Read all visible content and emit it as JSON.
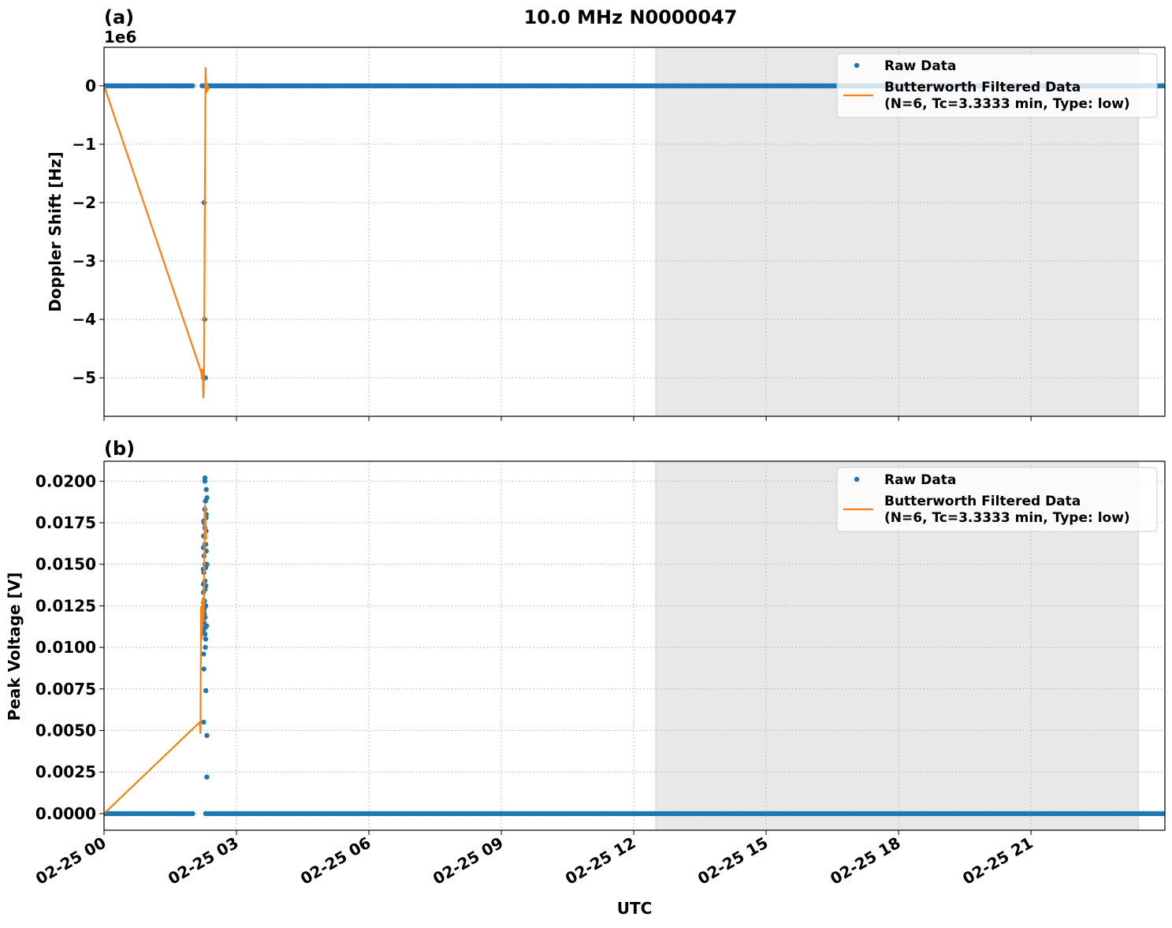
{
  "chart_data": [
    {
      "type": "scatter",
      "panel_label": "(a)",
      "title": "10.0 MHz N0000047",
      "ylabel": "Doppler Shift [Hz]",
      "y_offset_text": "1e6",
      "ylim": [
        -5660000,
        660000
      ],
      "xlim": [
        "02-25 00:00",
        "02-25 24:02"
      ],
      "yticks": [
        0,
        -1000000,
        -2000000,
        -3000000,
        -4000000,
        -5000000
      ],
      "ytick_labels": [
        "0",
        "−1",
        "−2",
        "−3",
        "−4",
        "−5"
      ],
      "grid": true,
      "legend_placement": "top-right",
      "shaded_interval": [
        "02-25 12:30",
        "02-25 23:26"
      ],
      "series": [
        {
          "name": "Raw Data",
          "kind": "markers",
          "color": "#1f77b4",
          "constant_runs": [
            {
              "y": 0,
              "from": "02-25 00:00",
              "to": "02-25 02:03"
            },
            {
              "y": 0,
              "from": "02-25 02:18",
              "to": "02-25 24:02"
            }
          ],
          "points": [
            [
              "02-25 02:14",
              0
            ],
            [
              "02-25 02:16",
              0
            ],
            [
              "02-25 02:17",
              -2000000
            ],
            [
              "02-25 02:17",
              -4000000
            ],
            [
              "02-25 02:17",
              -5000000
            ],
            [
              "02-25 02:15",
              -5000000
            ]
          ]
        },
        {
          "name": "Butterworth Filtered Data\n(N=6, Tc=3.3333 min, Type: low)",
          "kind": "line",
          "color": "#ff7f0e",
          "points": [
            [
              "02-25 00:00",
              0
            ],
            [
              "02-25 02:10",
              -4820000
            ],
            [
              "02-25 02:12",
              -4900000
            ],
            [
              "02-25 02:13",
              -5000000
            ],
            [
              "02-25 02:14",
              -4850000
            ],
            [
              "02-25 02:15",
              -5350000
            ],
            [
              "02-25 02:16",
              -4900000
            ],
            [
              "02-25 02:17",
              -2000000
            ],
            [
              "02-25 02:18",
              320000
            ],
            [
              "02-25 02:19",
              -120000
            ],
            [
              "02-25 02:20",
              30000
            ],
            [
              "02-25 02:21",
              -80000
            ],
            [
              "02-25 02:22",
              0
            ]
          ]
        }
      ]
    },
    {
      "type": "scatter",
      "panel_label": "(b)",
      "xlabel": "UTC",
      "ylabel": "Peak Voltage [V]",
      "ylim": [
        -0.001,
        0.0212
      ],
      "xlim": [
        "02-25 00:00",
        "02-25 24:02"
      ],
      "yticks": [
        0,
        0.0025,
        0.005,
        0.0075,
        0.01,
        0.0125,
        0.015,
        0.0175,
        0.02
      ],
      "ytick_labels": [
        "0.0000",
        "0.0025",
        "0.0050",
        "0.0075",
        "0.0100",
        "0.0125",
        "0.0150",
        "0.0175",
        "0.0200"
      ],
      "xticks": [
        "02-25 00:00",
        "02-25 03:00",
        "02-25 06:00",
        "02-25 09:00",
        "02-25 12:00",
        "02-25 15:00",
        "02-25 18:00",
        "02-25 21:00"
      ],
      "xtick_labels": [
        "02-25 00",
        "02-25 03",
        "02-25 06",
        "02-25 09",
        "02-25 12",
        "02-25 15",
        "02-25 18",
        "02-25 21"
      ],
      "grid": true,
      "legend_placement": "top-right",
      "shaded_interval": [
        "02-25 12:30",
        "02-25 23:26"
      ],
      "series": [
        {
          "name": "Raw Data",
          "kind": "markers",
          "color": "#1f77b4",
          "constant_runs": [
            {
              "y": 0,
              "from": "02-25 00:00",
              "to": "02-25 02:03"
            },
            {
              "y": 0,
              "from": "02-25 02:18",
              "to": "02-25 24:02"
            }
          ],
          "points": [
            [
              "02-25 02:15",
              0.0055
            ],
            [
              "02-25 02:15",
              0.0122
            ],
            [
              "02-25 02:15",
              0.0127
            ],
            [
              "02-25 02:15",
              0.0138
            ],
            [
              "02-25 02:15",
              0.0147
            ],
            [
              "02-25 02:15",
              0.016
            ],
            [
              "02-25 02:15",
              0.0175
            ],
            [
              "02-25 02:15",
              0.0115
            ],
            [
              "02-25 02:16",
              0.0096
            ],
            [
              "02-25 02:16",
              0.011
            ],
            [
              "02-25 02:16",
              0.012
            ],
            [
              "02-25 02:16",
              0.0133
            ],
            [
              "02-25 02:16",
              0.0145
            ],
            [
              "02-25 02:16",
              0.0155
            ],
            [
              "02-25 02:16",
              0.0167
            ],
            [
              "02-25 02:16",
              0.0176
            ],
            [
              "02-25 02:16",
              0.0087
            ],
            [
              "02-25 02:17",
              0.01
            ],
            [
              "02-25 02:17",
              0.0108
            ],
            [
              "02-25 02:17",
              0.0118
            ],
            [
              "02-25 02:17",
              0.0128
            ],
            [
              "02-25 02:17",
              0.014
            ],
            [
              "02-25 02:17",
              0.015
            ],
            [
              "02-25 02:17",
              0.0162
            ],
            [
              "02-25 02:17",
              0.0172
            ],
            [
              "02-25 02:17",
              0.0183
            ],
            [
              "02-25 02:18",
              0.0112
            ],
            [
              "02-25 02:18",
              0.0124
            ],
            [
              "02-25 02:18",
              0.0135
            ],
            [
              "02-25 02:18",
              0.0148
            ],
            [
              "02-25 02:18",
              0.0158
            ],
            [
              "02-25 02:18",
              0.017
            ],
            [
              "02-25 02:18",
              0.018
            ],
            [
              "02-25 02:18",
              0.0188
            ],
            [
              "02-25 02:18",
              0.0195
            ],
            [
              "02-25 02:18",
              0.02
            ],
            [
              "02-25 02:18",
              0.0202
            ],
            [
              "02-25 02:19",
              0.0113
            ],
            [
              "02-25 02:19",
              0.0125
            ],
            [
              "02-25 02:19",
              0.0137
            ],
            [
              "02-25 02:19",
              0.015
            ],
            [
              "02-25 02:19",
              0.0162
            ],
            [
              "02-25 02:19",
              0.0178
            ],
            [
              "02-25 02:19",
              0.019
            ],
            [
              "02-25 02:19",
              0.0105
            ],
            [
              "02-25 02:19",
              0.0074
            ],
            [
              "02-25 02:19",
              0.0047
            ],
            [
              "02-25 02:19",
              0.0022
            ]
          ]
        },
        {
          "name": "Butterworth Filtered Data\n(N=6, Tc=3.3333 min, Type: low)",
          "kind": "line",
          "color": "#ff7f0e",
          "points": [
            [
              "02-25 00:00",
              0
            ],
            [
              "02-25 02:10",
              0.0055
            ],
            [
              "02-25 02:11",
              0.0048
            ],
            [
              "02-25 02:12",
              0.0125
            ],
            [
              "02-25 02:13",
              0.0105
            ],
            [
              "02-25 02:14",
              0.013
            ],
            [
              "02-25 02:15",
              0.0115
            ],
            [
              "02-25 02:16",
              0.0128
            ],
            [
              "02-25 02:17",
              0.0186
            ],
            [
              "02-25 02:18",
              0.0176
            ],
            [
              "02-25 02:19",
              0.0165
            ]
          ]
        }
      ]
    }
  ],
  "legend_labels": {
    "raw": "Raw Data",
    "filtered_line1": "Butterworth Filtered Data",
    "filtered_line2": "(N=6, Tc=3.3333 min, Type: low)"
  },
  "colors": {
    "raw": "#1f77b4",
    "filtered": "#ff7f0e",
    "shade": "#e8e8e8",
    "grid": "#b0b0b0"
  }
}
